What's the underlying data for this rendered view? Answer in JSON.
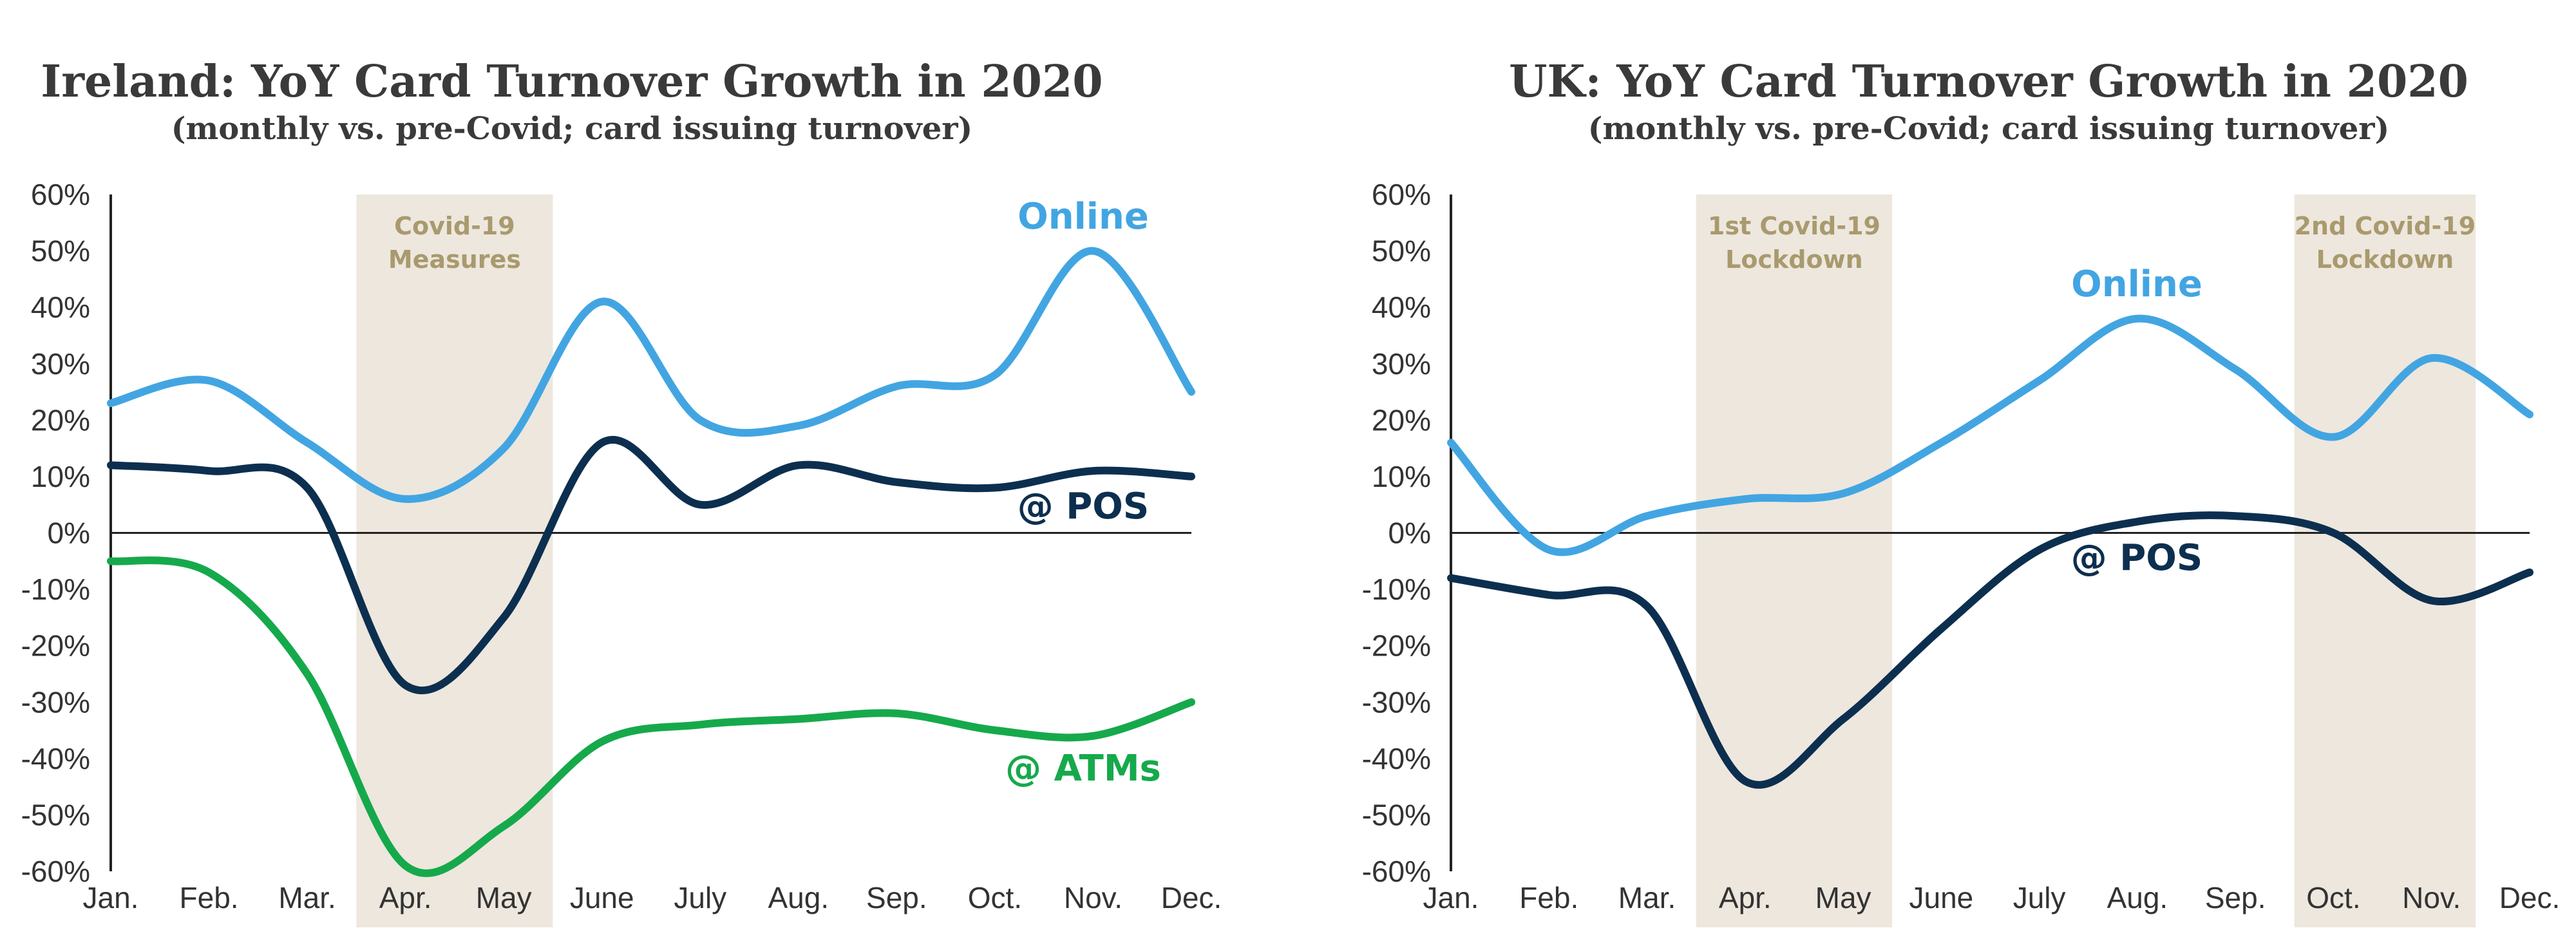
{
  "chart_data": [
    {
      "type": "line",
      "title": "Ireland: YoY Card Turnover Growth in 2020",
      "subtitle": "(monthly vs. pre-Covid; card issuing turnover)",
      "categories": [
        "Jan.",
        "Feb.",
        "Mar.",
        "Apr.",
        "May",
        "June",
        "July",
        "Aug.",
        "Sep.",
        "Oct.",
        "Nov.",
        "Dec."
      ],
      "ylim": [
        -60,
        60
      ],
      "yticks": [
        60,
        50,
        40,
        30,
        20,
        10,
        0,
        -10,
        -20,
        -30,
        -40,
        -50,
        -60
      ],
      "ytick_labels": [
        "60%",
        "50%",
        "40%",
        "30%",
        "20%",
        "10%",
        "0%",
        "-10%",
        "-20%",
        "-30%",
        "-40%",
        "-50%",
        "-60%"
      ],
      "shaded_regions": [
        {
          "from": 2.5,
          "to": 4.5,
          "label_lines": [
            "Covid-19",
            "Measures"
          ]
        }
      ],
      "series": [
        {
          "name": "Online",
          "color": "#42a5e2",
          "values": [
            23,
            27,
            16,
            6,
            15,
            41,
            20,
            19,
            26,
            28,
            50,
            25
          ]
        },
        {
          "name": "@ POS",
          "color": "#0d2f4f",
          "values": [
            12,
            11,
            8,
            -27,
            -15,
            16,
            5,
            12,
            9,
            8,
            11,
            10
          ]
        },
        {
          "name": "@ ATMs",
          "color": "#16a94c",
          "values": [
            -5,
            -7,
            -25,
            -59,
            -52,
            -37,
            -34,
            -33,
            -32,
            -35,
            -36,
            -30
          ]
        }
      ],
      "zero_line": true,
      "grid": false
    },
    {
      "type": "line",
      "title": "UK: YoY Card Turnover Growth in 2020",
      "subtitle": "(monthly vs. pre-Covid; card issuing turnover)",
      "categories": [
        "Jan.",
        "Feb.",
        "Mar.",
        "Apr.",
        "May",
        "June",
        "July",
        "Aug.",
        "Sep.",
        "Oct.",
        "Nov.",
        "Dec."
      ],
      "ylim": [
        -60,
        60
      ],
      "yticks": [
        60,
        50,
        40,
        30,
        20,
        10,
        0,
        -10,
        -20,
        -30,
        -40,
        -50,
        -60
      ],
      "ytick_labels": [
        "60%",
        "50%",
        "40%",
        "30%",
        "20%",
        "10%",
        "0%",
        "-10%",
        "-20%",
        "-30%",
        "-40%",
        "-50%",
        "-60%"
      ],
      "shaded_regions": [
        {
          "from": 2.5,
          "to": 4.5,
          "label_lines": [
            "1st Covid-19",
            "Lockdown"
          ]
        },
        {
          "from": 8.6,
          "to": 10.45,
          "label_lines": [
            "2nd Covid-19",
            "Lockdown"
          ]
        }
      ],
      "series": [
        {
          "name": "Online",
          "color": "#42a5e2",
          "values": [
            16,
            -3,
            3,
            6,
            7,
            16,
            27,
            38,
            29,
            17,
            31,
            21
          ]
        },
        {
          "name": "@ POS",
          "color": "#0d2f4f",
          "values": [
            -8,
            -11,
            -13,
            -44,
            -33,
            -17,
            -3,
            2,
            3,
            0,
            -12,
            -7
          ]
        }
      ],
      "zero_line": true,
      "grid": false
    }
  ]
}
